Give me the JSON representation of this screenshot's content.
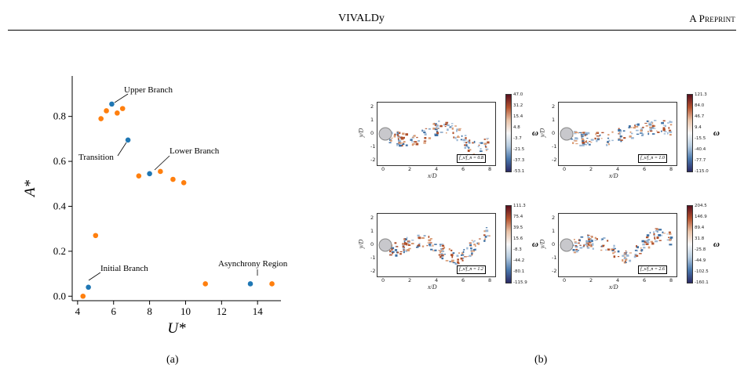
{
  "header": {
    "title": "VIVALDy",
    "right": "A Preprint"
  },
  "captions": {
    "a": "(a)",
    "b": "(b)"
  },
  "chart_data": {
    "type": "scatter",
    "xlabel": "U*",
    "ylabel": "A*",
    "xlim": [
      3.7,
      15.3
    ],
    "ylim": [
      -0.02,
      0.98
    ],
    "xticks": [
      4,
      6,
      8,
      10,
      12,
      14
    ],
    "yticks": [
      0.0,
      0.2,
      0.4,
      0.6,
      0.8
    ],
    "series": [
      {
        "color": "#1f77b4",
        "points": [
          [
            4.6,
            0.04
          ],
          [
            5.9,
            0.855
          ],
          [
            6.8,
            0.695
          ],
          [
            8.0,
            0.545
          ],
          [
            13.6,
            0.055
          ]
        ]
      },
      {
        "color": "#ff7f0e",
        "points": [
          [
            4.3,
            0.0
          ],
          [
            5.0,
            0.27
          ],
          [
            5.3,
            0.79
          ],
          [
            5.6,
            0.825
          ],
          [
            6.2,
            0.815
          ],
          [
            6.5,
            0.835
          ],
          [
            7.4,
            0.535
          ],
          [
            8.6,
            0.555
          ],
          [
            9.3,
            0.52
          ],
          [
            9.9,
            0.505
          ],
          [
            11.1,
            0.055
          ],
          [
            14.8,
            0.055
          ]
        ]
      }
    ],
    "annotations": [
      {
        "text": "Upper Branch",
        "point": [
          5.9,
          0.855
        ]
      },
      {
        "text": "Transition",
        "point": [
          6.8,
          0.695
        ]
      },
      {
        "text": "Lower Branch",
        "point": [
          8.0,
          0.545
        ]
      },
      {
        "text": "Initial Branch",
        "point": [
          4.6,
          0.04
        ]
      },
      {
        "text": "Asynchrony Region",
        "point": [
          13.6,
          0.055
        ]
      }
    ]
  },
  "vorticity_panels": [
    {
      "ratio": "f_s/f_n = 0.8",
      "cbar": [
        "47.0",
        "31.2",
        "15.4",
        "4.8",
        "-3.7",
        "-21.5",
        "-37.3",
        "-53.1"
      ]
    },
    {
      "ratio": "f_s/f_n = 1.0",
      "cbar": [
        "121.3",
        "84.0",
        "46.7",
        "9.4",
        "-15.5",
        "-40.4",
        "-77.7",
        "-115.0"
      ]
    },
    {
      "ratio": "f_s/f_n = 1.2",
      "cbar": [
        "111.3",
        "75.4",
        "39.5",
        "15.6",
        "-8.3",
        "-44.2",
        "-80.1",
        "-115.9"
      ]
    },
    {
      "ratio": "f_s/f_n = 2.6",
      "cbar": [
        "204.5",
        "146.9",
        "89.4",
        "31.8",
        "-25.8",
        "-44.9",
        "-102.5",
        "-160.1"
      ]
    }
  ],
  "vorticity_axes": {
    "xlabel": "x/D",
    "ylabel": "y/D",
    "cbar_label": "ω",
    "xticks": [
      "0",
      "2",
      "4",
      "6",
      "8"
    ],
    "yticks": [
      "2",
      "1",
      "0",
      "-1",
      "-2"
    ]
  }
}
